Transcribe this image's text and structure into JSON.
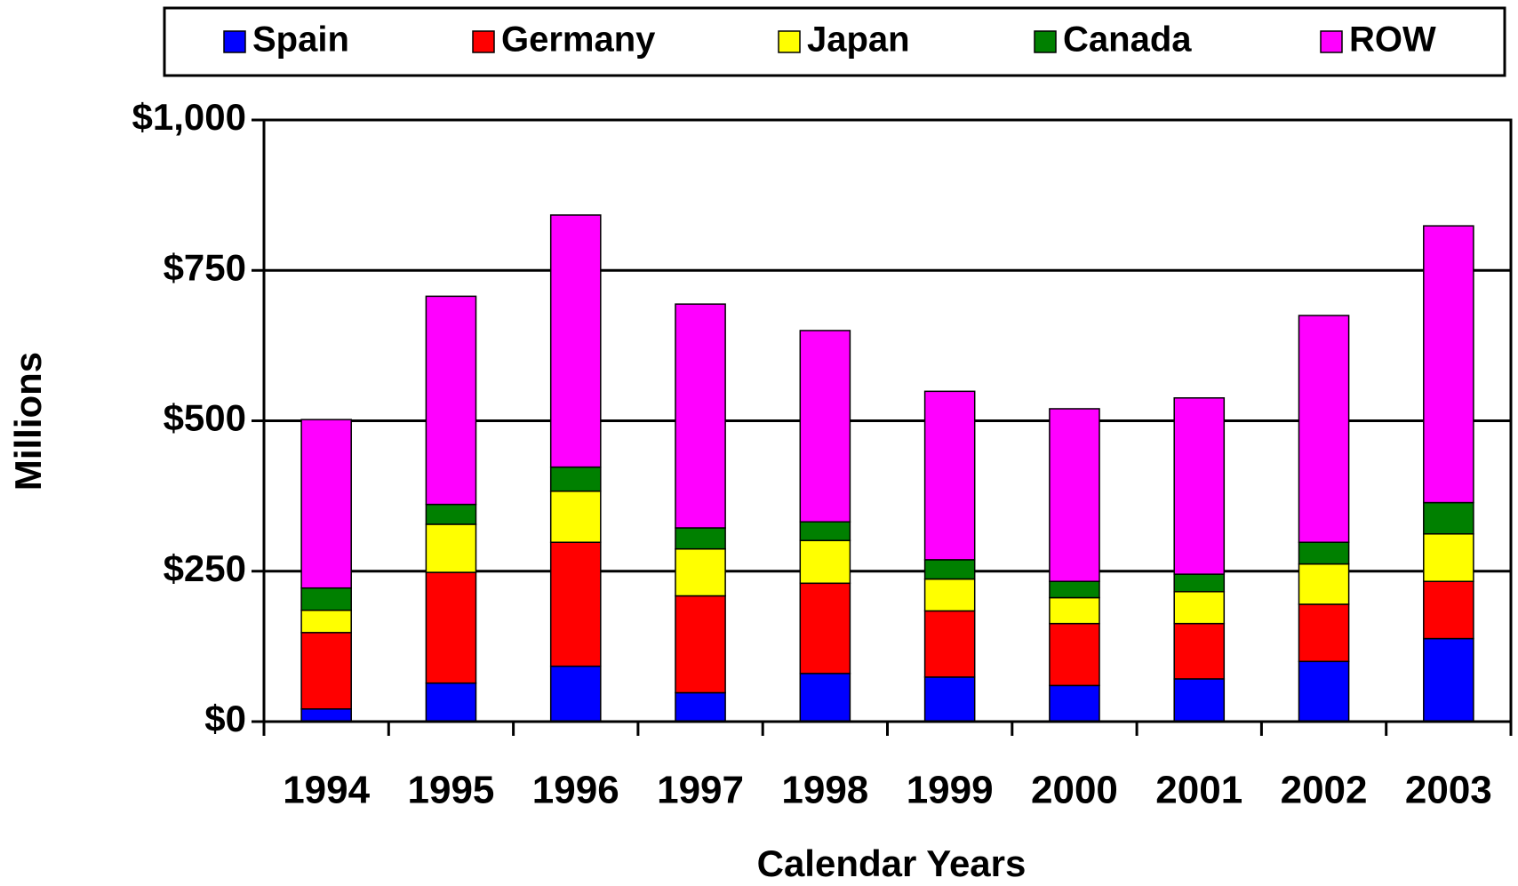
{
  "chart_data": {
    "type": "bar",
    "stacked": true,
    "x_label": "Calendar Years",
    "y_label": "Millions",
    "categories": [
      "1994",
      "1995",
      "1996",
      "1997",
      "1998",
      "1999",
      "2000",
      "2001",
      "2002",
      "2003"
    ],
    "series": [
      {
        "name": "Spain",
        "color": "#0000ff",
        "values": [
          21,
          64,
          92,
          48,
          80,
          74,
          60,
          71,
          100,
          138
        ]
      },
      {
        "name": "Germany",
        "color": "#ff0000",
        "values": [
          127,
          184,
          206,
          161,
          150,
          110,
          103,
          92,
          95,
          95
        ]
      },
      {
        "name": "Japan",
        "color": "#ffff00",
        "values": [
          37,
          80,
          85,
          78,
          71,
          53,
          43,
          53,
          67,
          79
        ]
      },
      {
        "name": "Canada",
        "color": "#008000",
        "values": [
          37,
          33,
          40,
          35,
          31,
          32,
          27,
          29,
          36,
          52
        ]
      },
      {
        "name": "ROW",
        "color": "#ff00ff",
        "values": [
          280,
          346,
          419,
          372,
          318,
          280,
          287,
          293,
          377,
          460
        ]
      }
    ],
    "ylim": [
      0,
      1000
    ],
    "yticks": [
      {
        "value": 0,
        "label": "$0"
      },
      {
        "value": 250,
        "label": "$250"
      },
      {
        "value": 500,
        "label": "$500"
      },
      {
        "value": 750,
        "label": "$750"
      },
      {
        "value": 1000,
        "label": "$1,000"
      }
    ],
    "grid": true,
    "legend": "top"
  }
}
